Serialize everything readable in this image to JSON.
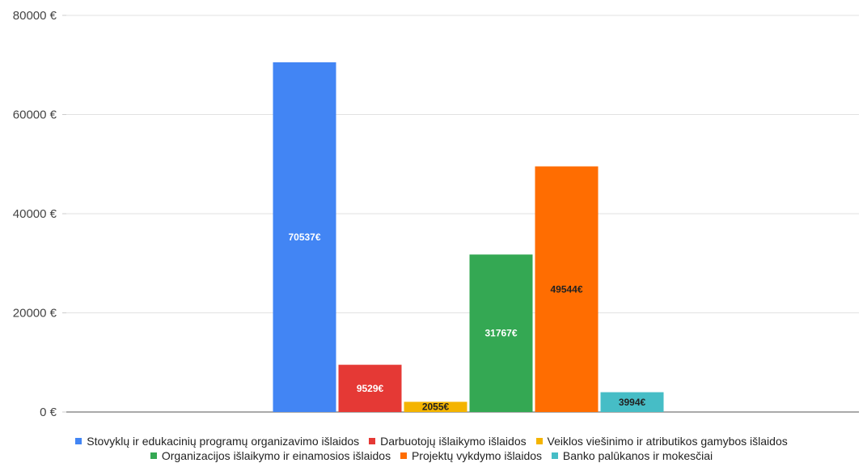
{
  "chart_data": {
    "type": "bar",
    "title": "",
    "xlabel": "",
    "ylabel": "",
    "ylim": [
      0,
      80000
    ],
    "yticks": [
      0,
      20000,
      40000,
      60000,
      80000
    ],
    "ytick_labels": [
      "0 €",
      "20000 €",
      "40000 €",
      "60000 €",
      "80000 €"
    ],
    "grid": true,
    "legend_position": "bottom",
    "series": [
      {
        "name": "Stovyklų ir edukacinių programų organizavimo išlaidos",
        "value": 70537,
        "label": "70537€",
        "color": "#4285f4",
        "label_color": "#ffffff"
      },
      {
        "name": "Darbuotojų išlaikymo išlaidos",
        "value": 9529,
        "label": "9529€",
        "color": "#e53935",
        "label_color": "#ffffff"
      },
      {
        "name": "Veiklos viešinimo ir atributikos gamybos išlaidos",
        "value": 2055,
        "label": "2055€",
        "color": "#f4b400",
        "label_color": "#222222"
      },
      {
        "name": "Organizacijos išlaikymo ir einamosios išlaidos",
        "value": 31767,
        "label": "31767€",
        "color": "#34a853",
        "label_color": "#ffffff"
      },
      {
        "name": "Projektų vykdymo išlaidos",
        "value": 49544,
        "label": "49544€",
        "color": "#ff6d01",
        "label_color": "#222222"
      },
      {
        "name": "Banko palūkanos ir mokesčiai",
        "value": 3994,
        "label": "3994€",
        "color": "#46bdc6",
        "label_color": "#222222"
      }
    ]
  }
}
